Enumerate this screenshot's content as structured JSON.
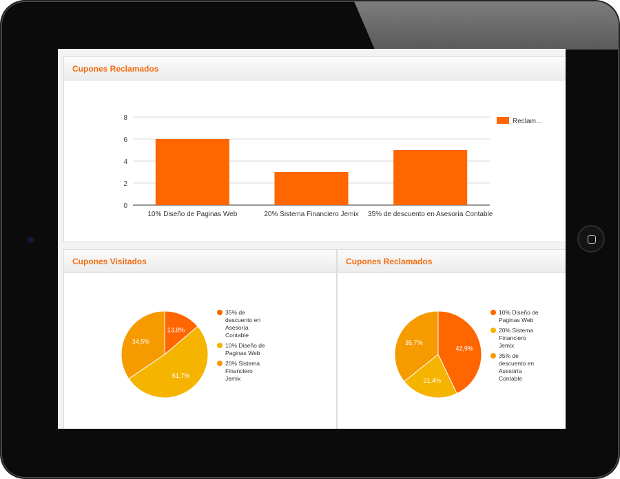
{
  "panels": {
    "top": {
      "title": "Cupones Reclamados"
    },
    "left": {
      "title": "Cupones Visitados"
    },
    "right": {
      "title": "Cupones Reclamados"
    }
  },
  "colors": {
    "accent": "#f26c0f",
    "bar": "#ff6600"
  },
  "chart_data": [
    {
      "type": "bar",
      "categories": [
        "10% Diseño de Paginas Web",
        "20% Sistema Financiero Jemix",
        "35% de descuento en Asesoría Contable"
      ],
      "series": [
        {
          "name": "Reclam...",
          "values": [
            6,
            3,
            5
          ],
          "color": "#ff6600"
        }
      ],
      "yticks": [
        0,
        2,
        4,
        6,
        8
      ],
      "ylim": [
        0,
        8
      ],
      "legend": "right",
      "grid": true
    },
    {
      "type": "pie",
      "title": "Cupones Visitados",
      "slices": [
        {
          "label": "35% de descuento en Asesoría Contable",
          "value": 13.8,
          "display": "13,8%",
          "color": "#ff6600"
        },
        {
          "label": "10% Diseño de Paginas Web",
          "value": 51.7,
          "display": "51,7%",
          "color": "#f5b400"
        },
        {
          "label": "20% Sistema Financiero Jemix",
          "value": 34.5,
          "display": "34,5%",
          "color": "#f59b00"
        }
      ],
      "legend": "right"
    },
    {
      "type": "pie",
      "title": "Cupones Reclamados",
      "slices": [
        {
          "label": "10% Diseño de Paginas Web",
          "value": 42.9,
          "display": "42,9%",
          "color": "#ff6600"
        },
        {
          "label": "20% Sistema Financiero Jemix",
          "value": 21.4,
          "display": "21,4%",
          "color": "#f5b400"
        },
        {
          "label": "35% de descuento en Asesoría Contable",
          "value": 35.7,
          "display": "35,7%",
          "color": "#f59b00"
        }
      ],
      "legend": "right"
    }
  ]
}
